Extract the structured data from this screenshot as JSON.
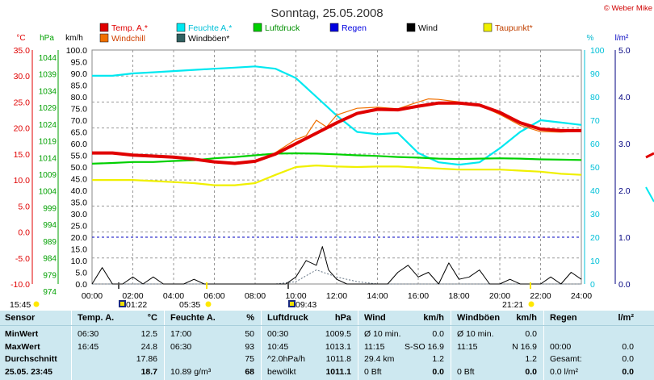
{
  "title": "Sonntag, 25.05.2008",
  "copyright": "© Weber Mike",
  "legend": [
    {
      "name": "Temp. A.*",
      "color": "#e00000"
    },
    {
      "name": "Feuchte A.*",
      "color": "#00e8f0"
    },
    {
      "name": "Luftdruck",
      "color": "#00d000"
    },
    {
      "name": "Regen",
      "color": "#0000e0"
    },
    {
      "name": "Wind",
      "color": "#000000"
    },
    {
      "name": "Taupunkt*",
      "color": "#f0f000"
    },
    {
      "name": "Windchill",
      "color": "#f07000"
    },
    {
      "name": "Windböen*",
      "color": "#306060"
    }
  ],
  "axes": {
    "temp": {
      "unit": "°C",
      "color": "#e00000",
      "ticks": [
        "35.0",
        "30.0",
        "25.0",
        "20.0",
        "15.0",
        "10.0",
        "5.0",
        "0.0",
        "-5.0",
        "-10.0"
      ]
    },
    "pressure": {
      "unit": "hPa",
      "color": "#00a000",
      "ticks": [
        "1044",
        "1039",
        "1034",
        "1029",
        "1024",
        "1019",
        "1014",
        "1009",
        "1004",
        "999",
        "994",
        "989",
        "984",
        "979",
        "974"
      ]
    },
    "wind": {
      "unit": "km/h",
      "ticks": [
        "100.0",
        "95.0",
        "90.0",
        "85.0",
        "80.0",
        "75.0",
        "70.0",
        "65.0",
        "60.0",
        "55.0",
        "50.0",
        "45.0",
        "40.0",
        "35.0",
        "30.0",
        "25.0",
        "20.0",
        "15.0",
        "10.0",
        "5.0",
        "0.0"
      ]
    },
    "humidity": {
      "unit": "%",
      "ticks": [
        "100",
        "90",
        "80",
        "70",
        "60",
        "50",
        "40",
        "30",
        "20",
        "10",
        "0"
      ]
    },
    "rain": {
      "unit": "l/m²",
      "ticks": [
        "5.0",
        "4.0",
        "3.0",
        "2.0",
        "1.0",
        "0.0"
      ]
    },
    "time_ticks": [
      "00:00",
      "02:00",
      "04:00",
      "06:00",
      "08:00",
      "10:00",
      "12:00",
      "14:00",
      "16:00",
      "18:00",
      "20:00",
      "22:00",
      "24:00"
    ]
  },
  "markers": [
    {
      "label": "15:45",
      "kind": "sunlabel"
    },
    {
      "label": "01:22",
      "kind": "moon"
    },
    {
      "label": "05:35",
      "kind": "sun"
    },
    {
      "label": "09:43",
      "kind": "moon"
    },
    {
      "label": "21:21",
      "kind": "sun"
    }
  ],
  "chart_data": {
    "type": "line",
    "x_unit": "hours",
    "x_range": [
      0,
      24
    ],
    "series": [
      {
        "name": "Temp. A.*",
        "axis": "temp",
        "x": [
          0,
          1,
          2,
          3,
          4,
          5,
          6,
          7,
          8,
          9,
          10,
          11,
          12,
          13,
          14,
          15,
          16,
          17,
          18,
          19,
          20,
          21,
          22,
          23,
          24
        ],
        "y": [
          15.2,
          15.2,
          14.8,
          14.6,
          14.4,
          14.0,
          13.5,
          13.2,
          13.6,
          15.0,
          17.0,
          19.0,
          21.0,
          22.8,
          23.6,
          23.5,
          24.2,
          24.8,
          24.8,
          24.4,
          23.0,
          21.0,
          19.8,
          19.5,
          19.5
        ]
      },
      {
        "name": "Windchill",
        "axis": "temp",
        "x": [
          0,
          1,
          2,
          3,
          4,
          5,
          6,
          7,
          8,
          9,
          10,
          10.5,
          11,
          11.5,
          12,
          13,
          14,
          15,
          16,
          16.5,
          17,
          18,
          19,
          20,
          21,
          22,
          23,
          24
        ],
        "y": [
          15.2,
          15.2,
          14.8,
          14.6,
          14.4,
          14.0,
          13.5,
          13.2,
          13.6,
          15.3,
          17.8,
          18.5,
          21.5,
          20.2,
          22.5,
          23.8,
          24.0,
          23.7,
          25.0,
          25.6,
          25.5,
          25.0,
          24.4,
          22.6,
          20.5,
          19.3,
          19.2,
          19.4
        ]
      },
      {
        "name": "Taupunkt*",
        "axis": "temp",
        "x": [
          0,
          1,
          2,
          3,
          4,
          5,
          6,
          7,
          8,
          9,
          10,
          11,
          12,
          13,
          14,
          15,
          16,
          17,
          18,
          19,
          20,
          21,
          22,
          23,
          24
        ],
        "y": [
          10.0,
          10.0,
          10.0,
          9.8,
          9.6,
          9.4,
          9.0,
          9.0,
          9.4,
          11.0,
          12.5,
          12.8,
          12.6,
          12.5,
          12.6,
          12.6,
          12.4,
          12.2,
          12.0,
          12.0,
          12.0,
          11.8,
          11.6,
          11.2,
          11.0
        ]
      },
      {
        "name": "Luftdruck",
        "axis": "pressure",
        "x": [
          0,
          1,
          2,
          3,
          4,
          5,
          6,
          7,
          8,
          9,
          10,
          11,
          12,
          13,
          14,
          15,
          16,
          17,
          18,
          19,
          20,
          21,
          22,
          23,
          24
        ],
        "y": [
          1010.0,
          1010.2,
          1010.5,
          1010.5,
          1010.8,
          1011.0,
          1011.6,
          1012.0,
          1012.5,
          1013.0,
          1013.1,
          1013.0,
          1012.8,
          1012.5,
          1012.3,
          1012.0,
          1011.8,
          1011.5,
          1011.4,
          1011.5,
          1011.6,
          1011.5,
          1011.3,
          1011.2,
          1011.1
        ]
      },
      {
        "name": "Feuchte A.*",
        "axis": "humidity",
        "x": [
          0,
          1,
          2,
          3,
          4,
          5,
          6,
          7,
          8,
          9,
          10,
          11,
          11.5,
          12,
          13,
          14,
          15,
          16,
          17,
          18,
          19,
          20,
          21,
          22,
          23,
          24
        ],
        "y": [
          89,
          89,
          90,
          90.5,
          91,
          91.5,
          92,
          92.5,
          93,
          92,
          88,
          80,
          76,
          72,
          65,
          64,
          64.5,
          56,
          52,
          51,
          52,
          58,
          65,
          70,
          69,
          68
        ]
      },
      {
        "name": "Wind",
        "axis": "wind",
        "x": [
          0,
          0.5,
          1,
          1.5,
          2,
          2.5,
          3,
          3.5,
          4,
          4.5,
          5,
          5.5,
          6,
          6.5,
          7,
          7.5,
          8,
          8.5,
          9,
          9.5,
          10,
          10.5,
          11,
          11.3,
          11.6,
          12,
          12.5,
          13,
          13.5,
          14,
          14.5,
          15,
          15.5,
          16,
          16.5,
          17,
          17.5,
          18,
          18.5,
          19,
          19.5,
          20,
          20.5,
          21,
          21.5,
          22,
          22.5,
          23,
          23.5,
          24
        ],
        "y": [
          0,
          7,
          0,
          0,
          3,
          0,
          3,
          0,
          0,
          0,
          2,
          0,
          0,
          0,
          0,
          0,
          0,
          0,
          0,
          0,
          3,
          10,
          8,
          16,
          6,
          2,
          0,
          0,
          0,
          0,
          0,
          5,
          8,
          3,
          5,
          0,
          9,
          2,
          3,
          6,
          0,
          0,
          2,
          0,
          0,
          0,
          3,
          0,
          5,
          2
        ]
      },
      {
        "name": "Windböen*",
        "axis": "wind",
        "x": [
          0,
          9,
          10,
          11,
          12,
          13,
          14,
          24
        ],
        "y": [
          0,
          0,
          1,
          6,
          3,
          1,
          0,
          0
        ]
      },
      {
        "name": "Regen",
        "axis": "rain",
        "x": [
          0,
          24
        ],
        "y": [
          1.0,
          1.0
        ]
      }
    ]
  },
  "stats": {
    "columns": [
      {
        "title": "Sensor",
        "unit": "",
        "rows": [
          "MinWert",
          "MaxWert",
          "Durchschnitt",
          "25.05. 23:45"
        ]
      },
      {
        "title": "Temp. A.",
        "unit": "°C",
        "rows": [
          [
            "06:30",
            "12.5"
          ],
          [
            "16:45",
            "24.8"
          ],
          [
            "",
            "17.86"
          ],
          [
            "",
            "18.7"
          ]
        ]
      },
      {
        "title": "Feuchte A.",
        "unit": "%",
        "rows": [
          [
            "17:00",
            "50"
          ],
          [
            "06:30",
            "93"
          ],
          [
            "",
            "75"
          ],
          [
            "10.89 g/m³",
            "68"
          ]
        ]
      },
      {
        "title": "Luftdruck",
        "unit": "hPa",
        "rows": [
          [
            "00:30",
            "1009.5"
          ],
          [
            "10:45",
            "1013.1"
          ],
          [
            "^2.0hPa/h",
            "1011.8"
          ],
          [
            "bewölkt",
            "1011.1"
          ]
        ]
      },
      {
        "title": "Wind",
        "unit": "km/h",
        "rows": [
          [
            "Ø 10 min.",
            "0.0"
          ],
          [
            "11:15",
            "S-SO 16.9"
          ],
          [
            "29.4 km",
            "1.2"
          ],
          [
            "0 Bft",
            "0.0"
          ]
        ]
      },
      {
        "title": "Windböen",
        "unit": "km/h",
        "rows": [
          [
            "Ø 10 min.",
            "0.0"
          ],
          [
            "11:15",
            "N 16.9"
          ],
          [
            "",
            "1.2"
          ],
          [
            "0 Bft",
            "0.0"
          ]
        ]
      },
      {
        "title": "Regen",
        "unit": "l/m²",
        "rows": [
          [
            "",
            ""
          ],
          [
            "00:00",
            "0.0"
          ],
          [
            "Gesamt:",
            "0.0"
          ],
          [
            "0.0 l/m²",
            "0.0"
          ]
        ]
      }
    ]
  }
}
